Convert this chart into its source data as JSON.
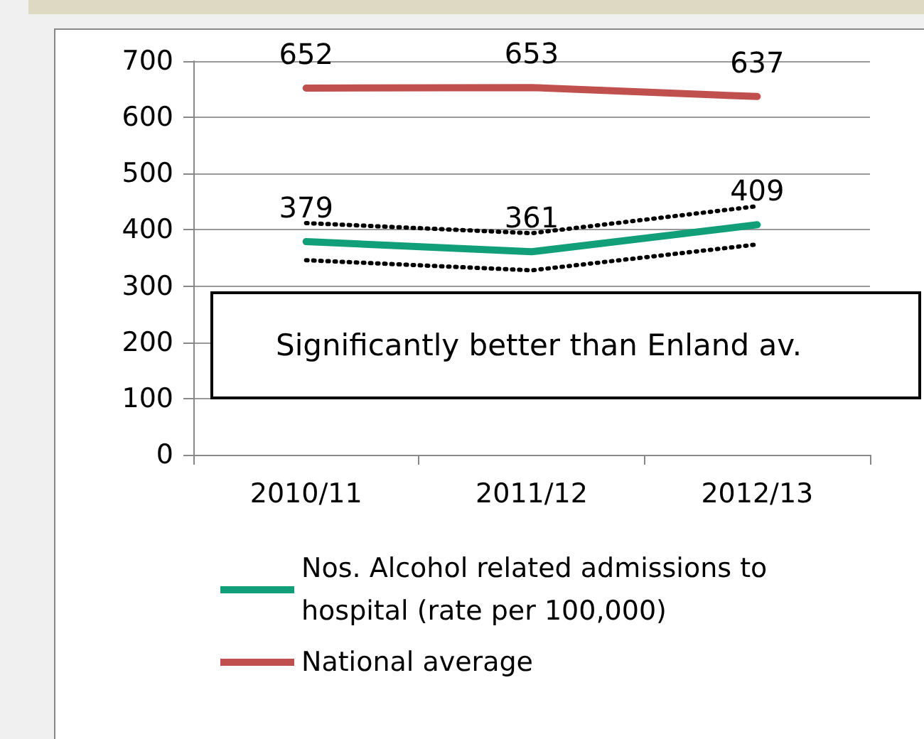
{
  "chart_data": {
    "type": "line",
    "categories": [
      "2010/11",
      "2011/12",
      "2012/13"
    ],
    "series": [
      {
        "name": "Nos. Alcohol related admissions to hospital (rate per 100,000)",
        "color": "#119f7a",
        "values": [
          379,
          361,
          409
        ],
        "value_labels": [
          "379",
          "361",
          "409"
        ]
      },
      {
        "name": "National average",
        "color": "#c0504d",
        "values": [
          652,
          653,
          637
        ],
        "value_labels": [
          "652",
          "653",
          "637"
        ]
      },
      {
        "color": "#000000",
        "values": [
          412,
          394,
          442
        ],
        "line_style": "dotted"
      },
      {
        "color": "#000000",
        "values": [
          346,
          328,
          374
        ],
        "line_style": "dotted"
      }
    ],
    "ylim": [
      0,
      700
    ],
    "yticks": [
      0,
      100,
      200,
      300,
      400,
      500,
      600,
      700
    ],
    "grid": "y",
    "legend": "bottom",
    "marker": "none",
    "line_style": "solid",
    "annotations": [
      "Significantly better than Enland av."
    ]
  }
}
